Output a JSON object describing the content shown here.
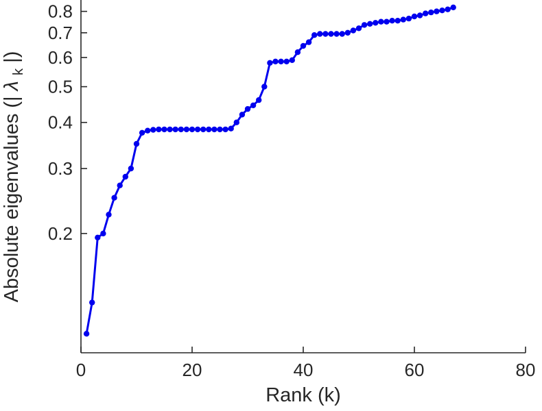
{
  "chart_data": {
    "type": "line",
    "title": "",
    "xlabel": "Rank (k)",
    "ylabel": "Absolute eigenvalues (|λ_k|)",
    "ylabel_parts": {
      "prefix": "Absolute eigenvalues (| ",
      "symbol": "λ",
      "subscript": "k",
      "suffix": "|)"
    },
    "xlim": [
      0,
      80
    ],
    "ylim": [
      0.095,
      0.83
    ],
    "y_scale": "log",
    "grid": false,
    "legend": "none",
    "x_ticks": [
      0,
      20,
      40,
      60,
      80
    ],
    "x_tick_labels": [
      "0",
      "20",
      "40",
      "60",
      "80"
    ],
    "y_ticks": [
      0.2,
      0.3,
      0.4,
      0.5,
      0.6,
      0.7,
      0.8
    ],
    "y_tick_labels": [
      "0.2",
      "0.3",
      "0.4",
      "0.5",
      "0.6",
      "0.7",
      "0.8"
    ],
    "line_color": "#0000ee",
    "axis_color": "#262626",
    "marker": "circle",
    "series": [
      {
        "name": "absolute-eigenvalues",
        "x": [
          1,
          2,
          3,
          4,
          5,
          6,
          7,
          8,
          9,
          10,
          11,
          12,
          13,
          14,
          15,
          16,
          17,
          18,
          19,
          20,
          21,
          22,
          23,
          24,
          25,
          26,
          27,
          28,
          29,
          30,
          31,
          32,
          33,
          34,
          35,
          36,
          37,
          38,
          39,
          40,
          41,
          42,
          43,
          44,
          45,
          46,
          47,
          48,
          49,
          50,
          51,
          52,
          53,
          54,
          55,
          56,
          57,
          58,
          59,
          60,
          61,
          62,
          63,
          64,
          65,
          66,
          67
        ],
        "y": [
          0.107,
          0.13,
          0.195,
          0.2,
          0.225,
          0.25,
          0.27,
          0.285,
          0.3,
          0.35,
          0.375,
          0.38,
          0.382,
          0.383,
          0.383,
          0.383,
          0.383,
          0.383,
          0.383,
          0.383,
          0.383,
          0.383,
          0.383,
          0.383,
          0.383,
          0.383,
          0.385,
          0.4,
          0.42,
          0.435,
          0.445,
          0.46,
          0.5,
          0.58,
          0.585,
          0.585,
          0.585,
          0.59,
          0.62,
          0.645,
          0.66,
          0.69,
          0.695,
          0.695,
          0.695,
          0.695,
          0.695,
          0.7,
          0.71,
          0.72,
          0.735,
          0.74,
          0.745,
          0.75,
          0.75,
          0.755,
          0.755,
          0.76,
          0.765,
          0.775,
          0.78,
          0.79,
          0.795,
          0.8,
          0.805,
          0.81,
          0.82
        ]
      }
    ]
  }
}
